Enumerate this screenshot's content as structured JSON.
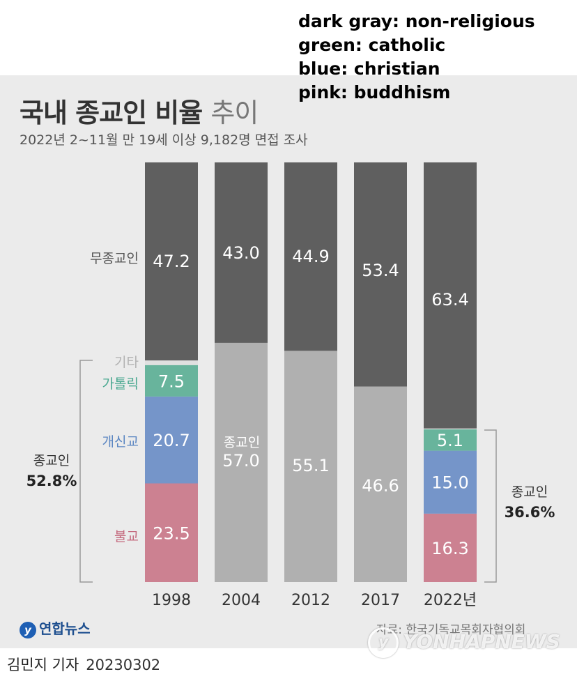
{
  "legend_note": [
    "dark gray: non-religious",
    "green: catholic",
    "blue: christian",
    "pink: buddhism"
  ],
  "chart_data": {
    "type": "bar",
    "title": "국내 종교인 비율",
    "title_light": "추이",
    "subtitle": "2022년 2~11월 만 19세 이상 9,182명 면접 조사",
    "categories": [
      "1998",
      "2004",
      "2012",
      "2017",
      "2022년"
    ],
    "series": [
      {
        "name": "불교",
        "color": "#cc8191",
        "values": [
          23.5,
          null,
          null,
          null,
          16.3
        ]
      },
      {
        "name": "개신교",
        "color": "#7595c9",
        "values": [
          20.7,
          null,
          null,
          null,
          15.0
        ]
      },
      {
        "name": "가톨릭",
        "color": "#68b49c",
        "values": [
          7.5,
          null,
          null,
          null,
          5.1
        ]
      },
      {
        "name": "기타",
        "color": "#e0e0e0",
        "values": [
          1.1,
          null,
          null,
          null,
          0.2
        ]
      },
      {
        "name": "종교인",
        "color": "#b0b0b0",
        "values": [
          null,
          57.0,
          55.1,
          46.6,
          null
        ]
      },
      {
        "name": "무종교인",
        "color": "#5f5f5f",
        "values": [
          47.2,
          43.0,
          44.9,
          53.4,
          63.4
        ]
      }
    ],
    "religious_label": "종교인",
    "religious_total_1998": "52.8%",
    "religious_total_2022": "36.6%",
    "ylim": [
      0,
      100
    ]
  },
  "footer": {
    "logo_mark": "y",
    "logo_text": "연합뉴스",
    "source": "자료: 한국기독교목회자협의회",
    "watermark": "YONHAPNEWS",
    "reporter": "김민지 기자",
    "date": "20230302"
  }
}
